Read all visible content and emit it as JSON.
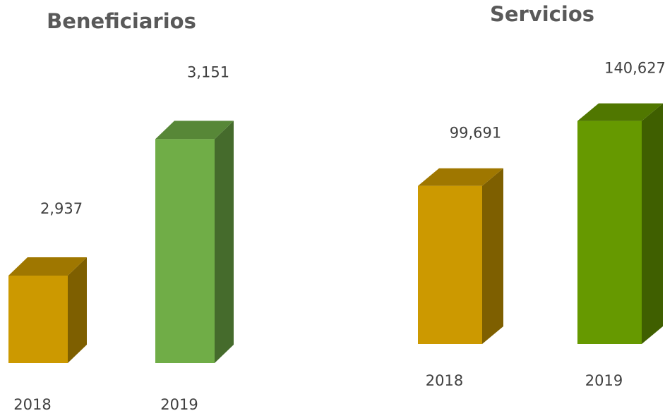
{
  "chart_data": [
    {
      "type": "bar3d",
      "title": "Beneficiarios",
      "categories": [
        "2018",
        "2019"
      ],
      "values": [
        2937,
        3151
      ],
      "value_labels": [
        "2,937",
        "3,151"
      ],
      "colors": [
        "#cc9900",
        "#70ad47"
      ],
      "ylim": [
        2800,
        3200
      ]
    },
    {
      "type": "bar3d",
      "title": "Servicios",
      "categories": [
        "2018",
        "2019"
      ],
      "values": [
        99691,
        140627
      ],
      "value_labels": [
        "99,691",
        "140,627"
      ],
      "colors": [
        "#cc9900",
        "#669900"
      ],
      "ylim": [
        0,
        160000
      ]
    }
  ]
}
